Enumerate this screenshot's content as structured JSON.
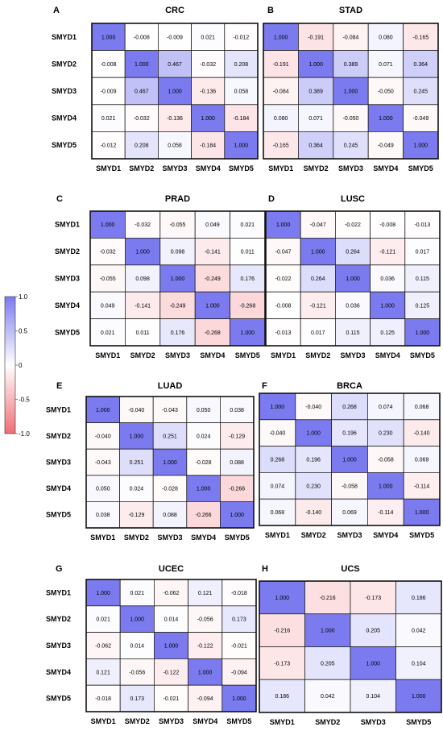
{
  "colorbar": {
    "ticks": [
      "1.0",
      "0.5",
      "0",
      "-0.5",
      "-1.0"
    ],
    "tick_values": [
      1.0,
      0.5,
      0,
      -0.5,
      -1.0
    ],
    "range": [
      -1.0,
      1.0
    ],
    "positive_color": "#7b7bef",
    "neutral_color": "#ffffff",
    "negative_color": "#f26d75"
  },
  "chart_data": [
    {
      "type": "heatmap",
      "panel": "A",
      "title": "CRC",
      "rows": [
        "SMYD1",
        "SMYD2",
        "SMYD3",
        "SMYD4",
        "SMYD5"
      ],
      "cols": [
        "SMYD1",
        "SMYD2",
        "SMYD3",
        "SMYD4",
        "SMYD5"
      ],
      "values": [
        [
          1.0,
          -0.008,
          -0.009,
          0.021,
          -0.012
        ],
        [
          -0.008,
          1.0,
          0.467,
          -0.032,
          0.208
        ],
        [
          -0.009,
          0.467,
          1.0,
          -0.136,
          0.058
        ],
        [
          0.021,
          -0.032,
          -0.136,
          1.0,
          -0.184
        ],
        [
          -0.012,
          0.208,
          0.058,
          -0.184,
          1.0
        ]
      ],
      "labels": [
        [
          "1.000",
          "-0.008",
          "-0.009",
          "0.021",
          "-0.012"
        ],
        [
          "-0.008",
          "1.000",
          "0.467",
          "-0.032",
          "0.208"
        ],
        [
          "-0.009",
          "0.467",
          "1.000",
          "-0.136",
          "0.058"
        ],
        [
          "0.021",
          "-0.032",
          "-0.136",
          "1.000",
          "-0.184"
        ],
        [
          "-0.012",
          "0.208",
          "0.058",
          "-0.184",
          "1.000"
        ]
      ]
    },
    {
      "type": "heatmap",
      "panel": "B",
      "title": "STAD",
      "rows": [
        "SMYD1",
        "SMYD2",
        "SMYD3",
        "SMYD4",
        "SMYD5"
      ],
      "cols": [
        "SMYD1",
        "SMYD2",
        "SMYD3",
        "SMYD4",
        "SMYD5"
      ],
      "values": [
        [
          1.0,
          -0.191,
          -0.084,
          0.08,
          -0.165
        ],
        [
          -0.191,
          1.0,
          0.389,
          0.071,
          0.364
        ],
        [
          -0.084,
          0.389,
          1.0,
          -0.05,
          0.245
        ],
        [
          0.08,
          0.071,
          -0.05,
          1.0,
          -0.049
        ],
        [
          -0.165,
          0.364,
          0.245,
          -0.049,
          1.0
        ]
      ],
      "labels": [
        [
          "1.000",
          "-0.191",
          "-0.084",
          "0.080",
          "-0.165"
        ],
        [
          "-0.191",
          "1.000",
          "0.389",
          "0.071",
          "0.364"
        ],
        [
          "-0.084",
          "0.389",
          "1.000",
          "-0.050",
          "0.245"
        ],
        [
          "0.080",
          "0.071",
          "-0.050",
          "1.000",
          "-0.049"
        ],
        [
          "-0.165",
          "0.364",
          "0.245",
          "-0.049",
          "1.000"
        ]
      ]
    },
    {
      "type": "heatmap",
      "panel": "C",
      "title": "PRAD",
      "rows": [
        "SMYD1",
        "SMYD2",
        "SMYD3",
        "SMYD4",
        "SMYD5"
      ],
      "cols": [
        "SMYD1",
        "SMYD2",
        "SMYD3",
        "SMYD4",
        "SMYD5"
      ],
      "values": [
        [
          1.0,
          -0.032,
          -0.055,
          0.049,
          0.021
        ],
        [
          -0.032,
          1.0,
          0.098,
          -0.141,
          0.011
        ],
        [
          -0.055,
          0.098,
          1.0,
          -0.249,
          0.176
        ],
        [
          0.049,
          -0.141,
          -0.249,
          1.0,
          -0.268
        ],
        [
          0.021,
          0.011,
          0.176,
          -0.268,
          1.0
        ]
      ],
      "labels": [
        [
          "1.000",
          "-0.032",
          "-0.055",
          "0.049",
          "0.021"
        ],
        [
          "-0.032",
          "1.000",
          "0.098",
          "-0.141",
          "0.011"
        ],
        [
          "-0.055",
          "0.098",
          "1.000",
          "-0.249",
          "0.176"
        ],
        [
          "0.049",
          "-0.141",
          "-0.249",
          "1.000",
          "-0.268"
        ],
        [
          "0.021",
          "0.011",
          "0.176",
          "-0.268",
          "1.000"
        ]
      ]
    },
    {
      "type": "heatmap",
      "panel": "D",
      "title": "LUSC",
      "rows": [
        "SMYD1",
        "SMYD2",
        "SMYD3",
        "SMYD4",
        "SMYD5"
      ],
      "cols": [
        "SMYD1",
        "SMYD2",
        "SMYD3",
        "SMYD4",
        "SMYD5"
      ],
      "values": [
        [
          1.0,
          -0.047,
          -0.022,
          -0.008,
          -0.013
        ],
        [
          -0.047,
          1.0,
          0.264,
          -0.121,
          0.017
        ],
        [
          -0.022,
          0.264,
          1.0,
          0.036,
          0.115
        ],
        [
          -0.008,
          -0.121,
          0.036,
          1.0,
          0.125
        ],
        [
          -0.013,
          0.017,
          0.115,
          0.125,
          1.0
        ]
      ],
      "labels": [
        [
          "1.000",
          "-0.047",
          "-0.022",
          "-0.008",
          "-0.013"
        ],
        [
          "-0.047",
          "1.000",
          "0.264",
          "-0.121",
          "0.017"
        ],
        [
          "-0.022",
          "0.264",
          "1.000",
          "0.036",
          "0.115"
        ],
        [
          "-0.008",
          "-0.121",
          "0.036",
          "1.000",
          "0.125"
        ],
        [
          "-0.013",
          "0.017",
          "0.115",
          "0.125",
          "1.000"
        ]
      ]
    },
    {
      "type": "heatmap",
      "panel": "E",
      "title": "LUAD",
      "rows": [
        "SMYD1",
        "SMYD2",
        "SMYD3",
        "SMYD4",
        "SMYD5"
      ],
      "cols": [
        "SMYD1",
        "SMYD2",
        "SMYD3",
        "SMYD4",
        "SMYD5"
      ],
      "values": [
        [
          1.0,
          -0.04,
          -0.043,
          0.05,
          0.038
        ],
        [
          -0.04,
          1.0,
          0.251,
          0.024,
          -0.129
        ],
        [
          -0.043,
          0.251,
          1.0,
          -0.028,
          0.088
        ],
        [
          0.05,
          0.024,
          -0.028,
          1.0,
          -0.266
        ],
        [
          0.038,
          -0.129,
          0.088,
          -0.266,
          1.0
        ]
      ],
      "labels": [
        [
          "1.000",
          "-0.040",
          "-0.043",
          "0.050",
          "0.038"
        ],
        [
          "-0.040",
          "1.000",
          "0.251",
          "0.024",
          "-0.129"
        ],
        [
          "-0.043",
          "0.251",
          "1.000",
          "-0.028",
          "0.088"
        ],
        [
          "0.050",
          "0.024",
          "-0.028",
          "1.000",
          "-0.266"
        ],
        [
          "0.038",
          "-0.129",
          "0.088",
          "-0.266",
          "1.000"
        ]
      ]
    },
    {
      "type": "heatmap",
      "panel": "F",
      "title": "BRCA",
      "rows": [
        "SMYD1",
        "SMYD2",
        "SMYD3",
        "SMYD4",
        "SMYD5"
      ],
      "cols": [
        "SMYD1",
        "SMYD2",
        "SMYD3",
        "SMYD4",
        "SMYD5"
      ],
      "values": [
        [
          1.0,
          -0.04,
          0.268,
          0.074,
          0.068
        ],
        [
          -0.04,
          1.0,
          0.196,
          0.23,
          -0.14
        ],
        [
          0.268,
          0.196,
          1.0,
          -0.058,
          0.069
        ],
        [
          0.074,
          0.23,
          -0.058,
          1.0,
          -0.114
        ],
        [
          0.068,
          -0.14,
          0.069,
          -0.114,
          1.0
        ]
      ],
      "labels": [
        [
          "1.000",
          "-0.040",
          "0.268",
          "0.074",
          "0.068"
        ],
        [
          "-0.040",
          "1.000",
          "0.196",
          "0.230",
          "-0.140"
        ],
        [
          "0.268",
          "0.196",
          "1.000",
          "-0.058",
          "0.069"
        ],
        [
          "0.074",
          "0.230",
          "-0.058",
          "1.000",
          "-0.114"
        ],
        [
          "0.068",
          "-0.140",
          "0.069",
          "-0.114",
          "1.000"
        ]
      ]
    },
    {
      "type": "heatmap",
      "panel": "G",
      "title": "UCEC",
      "rows": [
        "SMYD1",
        "SMYD2",
        "SMYD3",
        "SMYD4",
        "SMYD5"
      ],
      "cols": [
        "SMYD1",
        "SMYD2",
        "SMYD3",
        "SMYD4",
        "SMYD5"
      ],
      "values": [
        [
          1.0,
          0.021,
          -0.062,
          0.121,
          -0.018
        ],
        [
          0.021,
          1.0,
          0.014,
          -0.056,
          0.173
        ],
        [
          -0.062,
          0.014,
          1.0,
          -0.122,
          -0.021
        ],
        [
          0.121,
          -0.056,
          -0.122,
          1.0,
          -0.094
        ],
        [
          -0.018,
          0.173,
          -0.021,
          -0.094,
          1.0
        ]
      ],
      "labels": [
        [
          "1.000",
          "0.021",
          "-0.062",
          "0.121",
          "-0.018"
        ],
        [
          "0.021",
          "1.000",
          "0.014",
          "-0.056",
          "0.173"
        ],
        [
          "-0.062",
          "0.014",
          "1.000",
          "-0.122",
          "-0.021"
        ],
        [
          "0.121",
          "-0.056",
          "-0.122",
          "1.000",
          "-0.094"
        ],
        [
          "-0.018",
          "0.173",
          "-0.021",
          "-0.094",
          "1.000"
        ]
      ]
    },
    {
      "type": "heatmap",
      "panel": "H",
      "title": "UCS",
      "rows": [],
      "cols": [
        "SMYD1",
        "SMYD2",
        "SMYD3",
        "SMYD5"
      ],
      "values": [
        [
          1.0,
          -0.216,
          -0.173,
          0.186
        ],
        [
          -0.216,
          1.0,
          0.205,
          0.042
        ],
        [
          -0.173,
          0.205,
          1.0,
          0.104
        ],
        [
          0.186,
          0.042,
          0.104,
          1.0
        ]
      ],
      "labels": [
        [
          "1.000",
          "-0.216",
          "-0.173",
          "0.186"
        ],
        [
          "-0.216",
          "1.000",
          "0.205",
          "0.042"
        ],
        [
          "-0.173",
          "0.205",
          "1.000",
          "0.104"
        ],
        [
          "0.186",
          "0.042",
          "0.104",
          "1.000"
        ]
      ]
    }
  ]
}
